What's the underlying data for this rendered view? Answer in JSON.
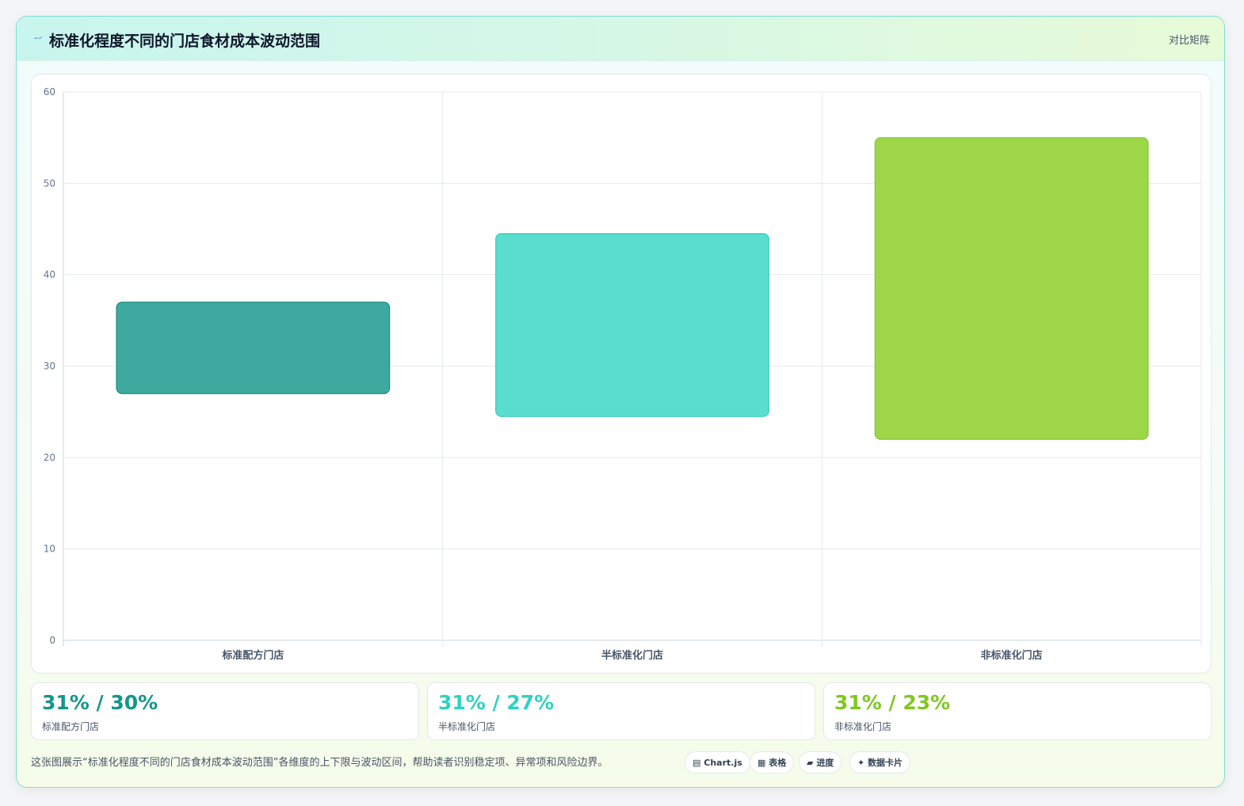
{
  "header": {
    "title": "标准化程度不同的门店食材成本波动范围",
    "mode_label": "对比矩阵",
    "icon": "lightning-icon"
  },
  "chart_data": {
    "type": "bar",
    "subtype": "floating-range",
    "categories": [
      "标准配方门店",
      "半标准化门店",
      "非标准化门店"
    ],
    "series": [
      {
        "values": [
          [
            27,
            37
          ],
          [
            24.5,
            44.5
          ],
          [
            22,
            55
          ]
        ]
      }
    ],
    "colors": [
      "#3da99f",
      "#58ddcf",
      "#9dd748"
    ],
    "border_colors": [
      "#1f8f85",
      "#34cfc0",
      "#86c72c"
    ],
    "ylim": [
      0,
      60
    ],
    "yticks": [
      0,
      10,
      20,
      30,
      40,
      50,
      60
    ],
    "grid": true,
    "legend": "none"
  },
  "stats": [
    {
      "value": "31% / 30%",
      "label": "标准配方门店",
      "color": "#14968a"
    },
    {
      "value": "31% / 27%",
      "label": "半标准化门店",
      "color": "#2ed1c1"
    },
    {
      "value": "31% / 23%",
      "label": "非标准化门店",
      "color": "#7ec81f"
    }
  ],
  "footnote": "这张图展示“标准化程度不同的门店食材成本波动范围”各维度的上下限与波动区间，帮助读者识别稳定项、异常项和风险边界。",
  "chips": [
    {
      "icon": "▤",
      "label": "Chart.js"
    },
    {
      "icon": "▦",
      "label": "表格"
    },
    {
      "icon": "▰",
      "label": "进度"
    },
    {
      "icon": "✦",
      "label": "数据卡片"
    }
  ]
}
